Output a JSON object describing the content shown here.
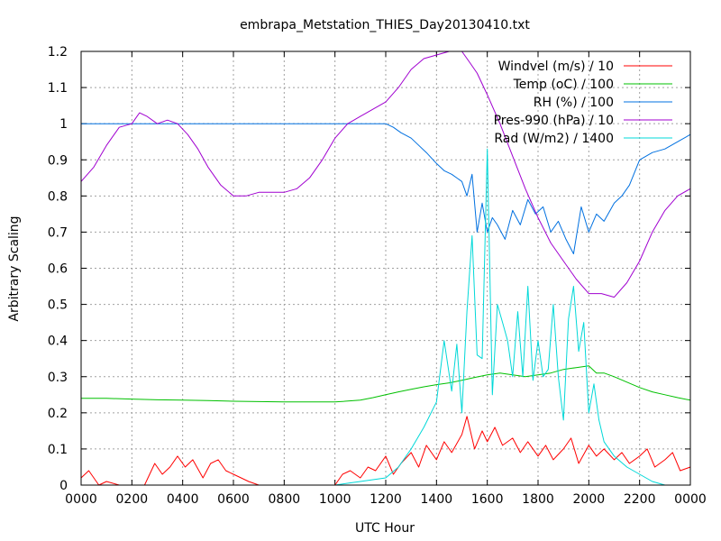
{
  "chart_data": {
    "type": "line",
    "title": "embrapa_Metstation_THIES_Day20130410.txt",
    "xlabel": "UTC Hour",
    "ylabel": "Arbitrary Scaling",
    "xlim": [
      0,
      24
    ],
    "ylim": [
      0,
      1.2
    ],
    "x_ticks": [
      {
        "value": 0,
        "label": "0000"
      },
      {
        "value": 2,
        "label": "0200"
      },
      {
        "value": 4,
        "label": "0400"
      },
      {
        "value": 6,
        "label": "0600"
      },
      {
        "value": 8,
        "label": "0800"
      },
      {
        "value": 10,
        "label": "1000"
      },
      {
        "value": 12,
        "label": "1200"
      },
      {
        "value": 14,
        "label": "1400"
      },
      {
        "value": 16,
        "label": "1600"
      },
      {
        "value": 18,
        "label": "1800"
      },
      {
        "value": 20,
        "label": "2000"
      },
      {
        "value": 22,
        "label": "2200"
      },
      {
        "value": 24,
        "label": "0000"
      }
    ],
    "y_ticks": [
      {
        "value": 0,
        "label": "0"
      },
      {
        "value": 0.1,
        "label": "0.1"
      },
      {
        "value": 0.2,
        "label": "0.2"
      },
      {
        "value": 0.3,
        "label": "0.3"
      },
      {
        "value": 0.4,
        "label": "0.4"
      },
      {
        "value": 0.5,
        "label": "0.5"
      },
      {
        "value": 0.6,
        "label": "0.6"
      },
      {
        "value": 0.7,
        "label": "0.7"
      },
      {
        "value": 0.8,
        "label": "0.8"
      },
      {
        "value": 0.9,
        "label": "0.9"
      },
      {
        "value": 1.0,
        "label": "1"
      },
      {
        "value": 1.1,
        "label": "1.1"
      },
      {
        "value": 1.2,
        "label": "1.2"
      }
    ],
    "grid": true,
    "legend_position": "top-right",
    "series": [
      {
        "name": "Windvel (m/s) / 10",
        "color": "#ff0000",
        "x": [
          0,
          0.3,
          0.7,
          1,
          1.5,
          2,
          2.5,
          2.9,
          3.2,
          3.5,
          3.8,
          4.1,
          4.4,
          4.8,
          5.1,
          5.4,
          5.7,
          6,
          6.3,
          6.6,
          7,
          7.3,
          7.6,
          8,
          8.5,
          9,
          9.5,
          10,
          10.3,
          10.6,
          11,
          11.3,
          11.6,
          12,
          12.3,
          12.6,
          13,
          13.3,
          13.6,
          14,
          14.3,
          14.6,
          15,
          15.2,
          15.5,
          15.8,
          16,
          16.3,
          16.6,
          17,
          17.3,
          17.6,
          18,
          18.3,
          18.6,
          19,
          19.3,
          19.6,
          20,
          20.3,
          20.6,
          21,
          21.3,
          21.6,
          22,
          22.3,
          22.6,
          23,
          23.3,
          23.6,
          24
        ],
        "y": [
          0.02,
          0.04,
          0.0,
          0.01,
          0.0,
          0.0,
          0.0,
          0.06,
          0.03,
          0.05,
          0.08,
          0.05,
          0.07,
          0.02,
          0.06,
          0.07,
          0.04,
          0.03,
          0.02,
          0.01,
          0.0,
          0.0,
          0.0,
          0.0,
          0.0,
          0.0,
          0.0,
          0.0,
          0.03,
          0.04,
          0.02,
          0.05,
          0.04,
          0.08,
          0.03,
          0.06,
          0.09,
          0.05,
          0.11,
          0.07,
          0.12,
          0.09,
          0.14,
          0.19,
          0.1,
          0.15,
          0.12,
          0.16,
          0.11,
          0.13,
          0.09,
          0.12,
          0.08,
          0.11,
          0.07,
          0.1,
          0.13,
          0.06,
          0.11,
          0.08,
          0.1,
          0.07,
          0.09,
          0.06,
          0.08,
          0.1,
          0.05,
          0.07,
          0.09,
          0.04,
          0.05
        ]
      },
      {
        "name": "Temp (oC) / 100",
        "color": "#00c000",
        "x": [
          0,
          1,
          2,
          3,
          4,
          5,
          6,
          7,
          8,
          9,
          10,
          11,
          11.5,
          12,
          12.5,
          13,
          13.5,
          14,
          14.5,
          15,
          15.5,
          16,
          16.5,
          17,
          17.5,
          18,
          18.5,
          19,
          19.5,
          20,
          20.3,
          20.6,
          21,
          21.5,
          22,
          22.5,
          23,
          23.5,
          24
        ],
        "y": [
          0.24,
          0.24,
          0.238,
          0.236,
          0.235,
          0.234,
          0.232,
          0.231,
          0.23,
          0.23,
          0.23,
          0.235,
          0.242,
          0.25,
          0.258,
          0.265,
          0.272,
          0.278,
          0.283,
          0.29,
          0.298,
          0.305,
          0.31,
          0.305,
          0.3,
          0.305,
          0.31,
          0.32,
          0.325,
          0.33,
          0.31,
          0.31,
          0.3,
          0.285,
          0.27,
          0.258,
          0.25,
          0.242,
          0.235
        ]
      },
      {
        "name": "RH (%) / 100",
        "color": "#0070e0",
        "x": [
          0,
          2,
          4,
          6,
          8,
          10,
          11,
          12,
          12.3,
          12.6,
          13,
          13.3,
          13.6,
          14,
          14.3,
          14.6,
          15,
          15.2,
          15.4,
          15.6,
          15.8,
          16,
          16.2,
          16.4,
          16.7,
          17,
          17.3,
          17.6,
          17.9,
          18.2,
          18.5,
          18.8,
          19.1,
          19.4,
          19.7,
          20,
          20.3,
          20.6,
          21,
          21.3,
          21.6,
          22,
          22.5,
          23,
          23.5,
          24
        ],
        "y": [
          1,
          1,
          1,
          1,
          1,
          1,
          1,
          1,
          0.99,
          0.975,
          0.96,
          0.94,
          0.92,
          0.89,
          0.87,
          0.86,
          0.84,
          0.8,
          0.86,
          0.7,
          0.78,
          0.7,
          0.74,
          0.72,
          0.68,
          0.76,
          0.72,
          0.79,
          0.75,
          0.77,
          0.7,
          0.73,
          0.68,
          0.64,
          0.77,
          0.7,
          0.75,
          0.73,
          0.78,
          0.8,
          0.83,
          0.9,
          0.92,
          0.93,
          0.95,
          0.97
        ]
      },
      {
        "name": "Pres-990 (hPa) / 10",
        "color": "#a000d0",
        "x": [
          0,
          0.5,
          1,
          1.5,
          2,
          2.3,
          2.6,
          3,
          3.4,
          3.8,
          4.2,
          4.6,
          5,
          5.5,
          6,
          6.5,
          7,
          7.5,
          8,
          8.5,
          9,
          9.5,
          10,
          10.5,
          11,
          11.5,
          12,
          12.5,
          13,
          13.5,
          14,
          14.5,
          15,
          15.3,
          15.6,
          16,
          16.5,
          17,
          17.5,
          18,
          18.5,
          19,
          19.5,
          20,
          20.5,
          21,
          21.5,
          22,
          22.5,
          23,
          23.5,
          24
        ],
        "y": [
          0.84,
          0.88,
          0.94,
          0.99,
          1.0,
          1.03,
          1.02,
          1.0,
          1.01,
          1.0,
          0.97,
          0.93,
          0.88,
          0.83,
          0.8,
          0.8,
          0.81,
          0.81,
          0.81,
          0.82,
          0.85,
          0.9,
          0.96,
          1.0,
          1.02,
          1.04,
          1.06,
          1.1,
          1.15,
          1.18,
          1.19,
          1.2,
          1.2,
          1.17,
          1.14,
          1.08,
          1.0,
          0.91,
          0.82,
          0.74,
          0.67,
          0.62,
          0.57,
          0.53,
          0.53,
          0.52,
          0.56,
          0.62,
          0.7,
          0.76,
          0.8,
          0.82
        ]
      },
      {
        "name": "Rad (W/m2) / 1400",
        "color": "#00d8d8",
        "x": [
          0,
          2,
          4,
          6,
          8,
          10,
          11,
          12,
          12.5,
          13,
          13.5,
          14,
          14.3,
          14.6,
          14.8,
          15,
          15.2,
          15.4,
          15.6,
          15.8,
          16,
          16.2,
          16.4,
          16.6,
          16.8,
          17,
          17.2,
          17.4,
          17.6,
          17.8,
          18,
          18.2,
          18.4,
          18.6,
          18.8,
          19,
          19.2,
          19.4,
          19.6,
          19.8,
          20,
          20.2,
          20.4,
          20.6,
          21,
          21.5,
          22,
          22.5,
          23,
          23.5,
          24
        ],
        "y": [
          0,
          0,
          0,
          0,
          0,
          0,
          0.01,
          0.02,
          0.05,
          0.1,
          0.16,
          0.23,
          0.4,
          0.26,
          0.39,
          0.2,
          0.48,
          0.69,
          0.36,
          0.35,
          0.93,
          0.25,
          0.5,
          0.45,
          0.4,
          0.3,
          0.48,
          0.3,
          0.55,
          0.29,
          0.4,
          0.3,
          0.32,
          0.5,
          0.3,
          0.18,
          0.46,
          0.55,
          0.37,
          0.45,
          0.2,
          0.28,
          0.18,
          0.12,
          0.08,
          0.05,
          0.03,
          0.01,
          0,
          0,
          0
        ]
      }
    ]
  }
}
